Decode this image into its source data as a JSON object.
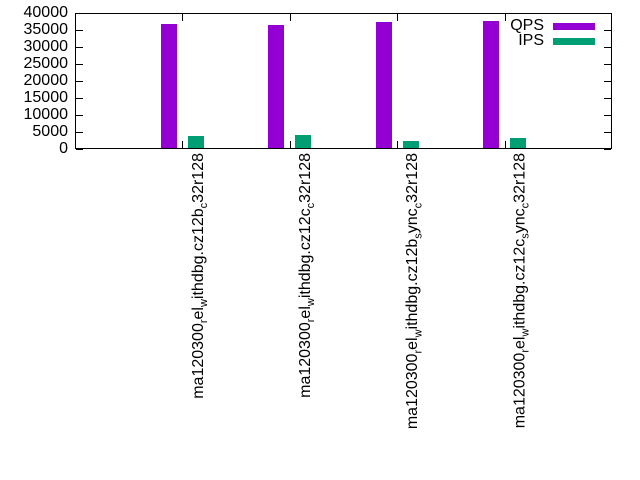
{
  "chart_data": {
    "type": "bar",
    "title": "",
    "xlabel": "",
    "ylabel": "",
    "categories": [
      "ma120300_rel_withdbg.cz12b_c32r128",
      "ma120300_rel_withdbg.cz12c_c32r128",
      "ma120300_rel_withdbg.cz12b_sync_c32r128",
      "ma120300_rel_withdbg.cz12c_sync_c32r128"
    ],
    "x_labels_rich": [
      {
        "segments": [
          {
            "t": "ma120300"
          },
          {
            "t": "r",
            "sub": true
          },
          {
            "t": "el"
          },
          {
            "t": "w",
            "sub": true
          },
          {
            "t": "ithdbg.cz12b"
          },
          {
            "t": "c",
            "sub": true
          },
          {
            "t": "32r128"
          }
        ]
      },
      {
        "segments": [
          {
            "t": "ma120300"
          },
          {
            "t": "r",
            "sub": true
          },
          {
            "t": "el"
          },
          {
            "t": "w",
            "sub": true
          },
          {
            "t": "ithdbg.cz12c"
          },
          {
            "t": "c",
            "sub": true
          },
          {
            "t": "32r128"
          }
        ]
      },
      {
        "segments": [
          {
            "t": "ma120300"
          },
          {
            "t": "r",
            "sub": true
          },
          {
            "t": "el"
          },
          {
            "t": "w",
            "sub": true
          },
          {
            "t": "ithdbg.cz12b"
          },
          {
            "t": "s",
            "sub": true
          },
          {
            "t": "ync"
          },
          {
            "t": "c",
            "sub": true
          },
          {
            "t": "32r128"
          }
        ]
      },
      {
        "segments": [
          {
            "t": "ma120300"
          },
          {
            "t": "r",
            "sub": true
          },
          {
            "t": "el"
          },
          {
            "t": "w",
            "sub": true
          },
          {
            "t": "ithdbg.cz12c"
          },
          {
            "t": "s",
            "sub": true
          },
          {
            "t": "ync"
          },
          {
            "t": "c",
            "sub": true
          },
          {
            "t": "32r128"
          }
        ]
      }
    ],
    "series": [
      {
        "name": "QPS",
        "color": "#9400d3",
        "values": [
          36800,
          36500,
          37400,
          37600
        ]
      },
      {
        "name": "IPS",
        "color": "#009e73",
        "values": [
          3900,
          4000,
          2500,
          3100
        ]
      }
    ],
    "ylim": [
      0,
      40000
    ],
    "ytick_step": 5000,
    "y_tick_labels": [
      "0",
      "5000",
      "10000",
      "15000",
      "20000",
      "25000",
      "30000",
      "35000",
      "40000"
    ],
    "legend_position": "top-right-inside",
    "grid": false,
    "background": "#ffffff",
    "border_color": "#000000"
  }
}
